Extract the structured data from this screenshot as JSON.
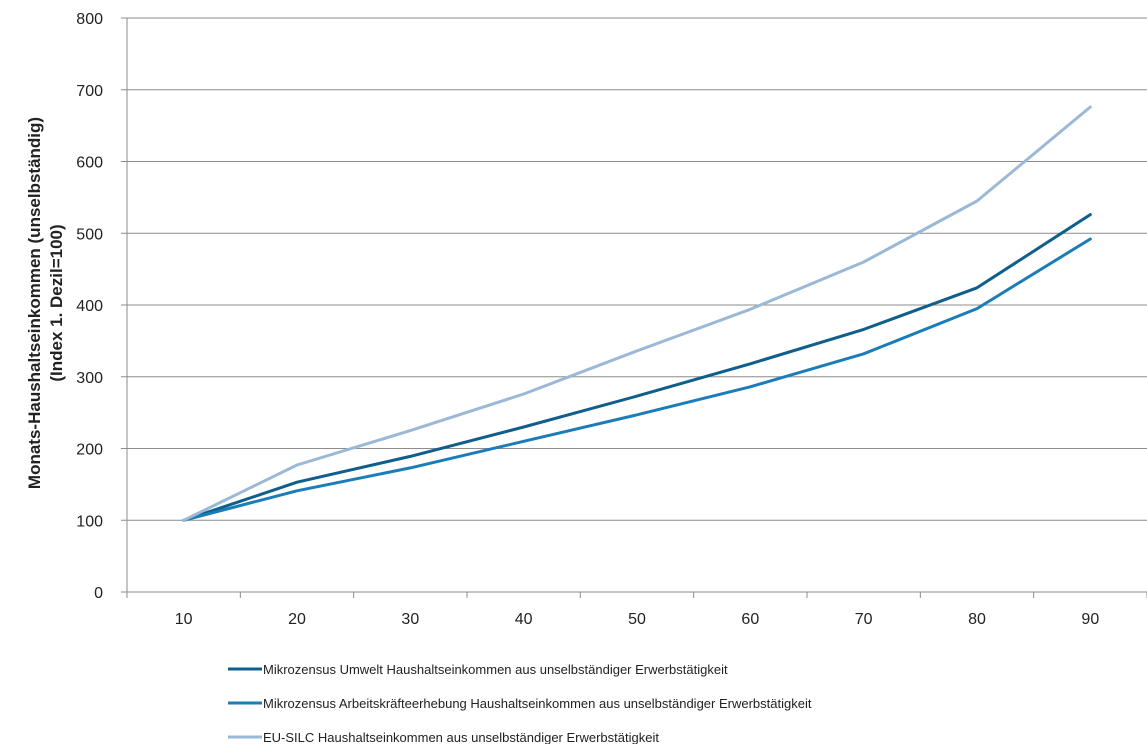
{
  "chart_data": {
    "type": "line",
    "title": "",
    "xlabel": "",
    "ylabel": [
      "Monats-Haushaltseinkommen (unselbständig)",
      "(Index 1. Dezil=100)"
    ],
    "x": [
      10,
      20,
      30,
      40,
      50,
      60,
      70,
      80,
      90
    ],
    "ylim": [
      0,
      800
    ],
    "yticks": [
      0,
      100,
      200,
      300,
      400,
      500,
      600,
      700,
      800
    ],
    "grid": true,
    "legend_position": "bottom",
    "series": [
      {
        "name": "Mikrozensus Umwelt Haushaltseinkommen aus unselbständiger Erwerbstätigkeit",
        "color": "#0f5e8c",
        "values": [
          100,
          153,
          189,
          230,
          273,
          318,
          366,
          424,
          526
        ]
      },
      {
        "name": "Mikrozensus Arbeitskräfteerhebung Haushaltseinkommen aus unselbständiger Erwerbstätigkeit",
        "color": "#1a7db8",
        "values": [
          100,
          141,
          173,
          210,
          247,
          286,
          332,
          395,
          492
        ]
      },
      {
        "name": "EU-SILC Haushaltseinkommen aus unselbständiger Erwerbstätigkeit",
        "color": "#9bb9d6",
        "values": [
          100,
          177,
          225,
          276,
          336,
          394,
          460,
          545,
          676
        ]
      }
    ]
  }
}
